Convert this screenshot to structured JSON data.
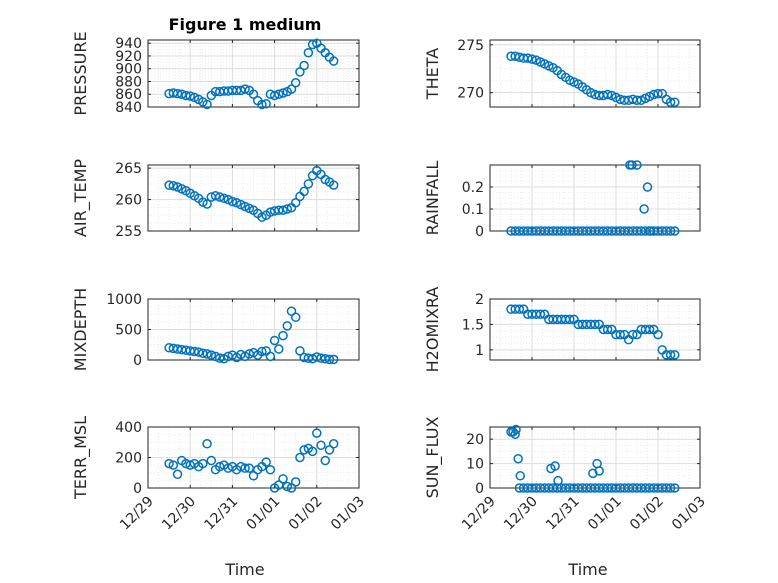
{
  "figure": {
    "title": "Figure 1 medium",
    "xlabel": "Time"
  },
  "colors": {
    "marker": "#0072BD",
    "axis": "#262626",
    "grid": "#dddddd",
    "minor_grid": "#ececec"
  },
  "chart_data": [
    {
      "type": "scatter",
      "ylabel": "PRESSURE",
      "xlim": [
        0,
        5
      ],
      "xticks": [
        0,
        1,
        2,
        3,
        4,
        5
      ],
      "xticklabels": [
        "12/29",
        "12/30",
        "12/31",
        "01/01",
        "01/02",
        "01/03"
      ],
      "ylim": [
        840,
        945
      ],
      "yticks": [
        840,
        860,
        880,
        900,
        920,
        940
      ],
      "yticklabels": [
        "840",
        "860",
        "880",
        "900",
        "920",
        "940"
      ],
      "series": [
        {
          "name": "PRESSURE",
          "x": [
            0.5,
            0.6,
            0.7,
            0.8,
            0.9,
            1.0,
            1.1,
            1.2,
            1.3,
            1.4,
            1.5,
            1.6,
            1.7,
            1.8,
            1.9,
            2.0,
            2.1,
            2.2,
            2.3,
            2.4,
            2.5,
            2.6,
            2.7,
            2.8,
            2.9,
            3.0,
            3.1,
            3.2,
            3.3,
            3.4,
            3.5,
            3.6,
            3.7,
            3.8,
            3.9,
            4.0,
            4.1,
            4.2,
            4.3,
            4.4
          ],
          "y": [
            861,
            862,
            861,
            860,
            858,
            857,
            855,
            852,
            848,
            844,
            858,
            864,
            864,
            865,
            865,
            866,
            866,
            866,
            868,
            866,
            860,
            850,
            844,
            845,
            860,
            858,
            860,
            862,
            864,
            868,
            878,
            895,
            905,
            925,
            938,
            940,
            932,
            925,
            918,
            912
          ]
        }
      ]
    },
    {
      "type": "scatter",
      "ylabel": "THETA",
      "xlim": [
        0,
        5
      ],
      "xticks": [
        0,
        1,
        2,
        3,
        4,
        5
      ],
      "xticklabels": [
        "12/29",
        "12/30",
        "12/31",
        "01/01",
        "01/02",
        "01/03"
      ],
      "ylim": [
        268.5,
        275.5
      ],
      "yticks": [
        270,
        275
      ],
      "yticklabels": [
        "270",
        "275"
      ],
      "series": [
        {
          "name": "THETA",
          "x": [
            0.5,
            0.6,
            0.7,
            0.8,
            0.9,
            1.0,
            1.1,
            1.2,
            1.3,
            1.4,
            1.5,
            1.6,
            1.7,
            1.8,
            1.9,
            2.0,
            2.1,
            2.2,
            2.3,
            2.4,
            2.5,
            2.6,
            2.7,
            2.8,
            2.9,
            3.0,
            3.1,
            3.2,
            3.3,
            3.4,
            3.5,
            3.6,
            3.7,
            3.8,
            3.9,
            4.0,
            4.1,
            4.2,
            4.3,
            4.4
          ],
          "y": [
            273.8,
            273.8,
            273.7,
            273.6,
            273.6,
            273.5,
            273.4,
            273.2,
            273.0,
            272.8,
            272.6,
            272.3,
            271.9,
            271.6,
            271.3,
            271.1,
            270.9,
            270.6,
            270.3,
            270.0,
            269.8,
            269.7,
            269.7,
            269.8,
            269.7,
            269.5,
            269.3,
            269.2,
            269.2,
            269.3,
            269.2,
            269.2,
            269.4,
            269.6,
            269.8,
            269.9,
            269.9,
            269.3,
            269.0,
            269.0
          ]
        }
      ]
    },
    {
      "type": "scatter",
      "ylabel": "AIR_TEMP",
      "xlim": [
        0,
        5
      ],
      "xticks": [
        0,
        1,
        2,
        3,
        4,
        5
      ],
      "xticklabels": [
        "12/29",
        "12/30",
        "12/31",
        "01/01",
        "01/02",
        "01/03"
      ],
      "ylim": [
        255,
        265.5
      ],
      "yticks": [
        255,
        260,
        265
      ],
      "yticklabels": [
        "255",
        "260",
        "265"
      ],
      "series": [
        {
          "name": "AIR_TEMP",
          "x": [
            0.5,
            0.6,
            0.7,
            0.8,
            0.9,
            1.0,
            1.1,
            1.2,
            1.3,
            1.4,
            1.5,
            1.6,
            1.7,
            1.8,
            1.9,
            2.0,
            2.1,
            2.2,
            2.3,
            2.4,
            2.5,
            2.6,
            2.7,
            2.8,
            2.9,
            3.0,
            3.1,
            3.2,
            3.3,
            3.4,
            3.5,
            3.6,
            3.7,
            3.8,
            3.9,
            4.0,
            4.1,
            4.2,
            4.3,
            4.4
          ],
          "y": [
            262.3,
            262.2,
            262.0,
            261.7,
            261.4,
            261.0,
            260.6,
            260.2,
            259.6,
            259.3,
            260.4,
            260.6,
            260.4,
            260.2,
            260.0,
            259.7,
            259.5,
            259.2,
            258.9,
            258.6,
            258.3,
            257.8,
            257.2,
            257.5,
            258.0,
            258.2,
            258.3,
            258.3,
            258.5,
            258.7,
            259.5,
            260.5,
            261.3,
            262.5,
            263.8,
            264.6,
            264.0,
            263.2,
            262.8,
            262.3
          ]
        }
      ]
    },
    {
      "type": "scatter",
      "ylabel": "RAINFALL",
      "xlim": [
        0,
        5
      ],
      "xticks": [
        0,
        1,
        2,
        3,
        4,
        5
      ],
      "xticklabels": [
        "12/29",
        "12/30",
        "12/31",
        "01/01",
        "01/02",
        "01/03"
      ],
      "ylim": [
        0,
        0.3
      ],
      "yticks": [
        0,
        0.1,
        0.2
      ],
      "yticklabels": [
        "0",
        "0.1",
        "0.2"
      ],
      "series": [
        {
          "name": "RAINFALL",
          "x": [
            0.5,
            0.6,
            0.7,
            0.8,
            0.9,
            1.0,
            1.1,
            1.2,
            1.3,
            1.4,
            1.5,
            1.6,
            1.7,
            1.8,
            1.9,
            2.0,
            2.1,
            2.2,
            2.3,
            2.4,
            2.5,
            2.6,
            2.7,
            2.8,
            2.9,
            3.0,
            3.1,
            3.2,
            3.3,
            3.4,
            3.5,
            3.6,
            3.7,
            3.8,
            3.9,
            4.0,
            4.1,
            4.2,
            4.3,
            4.4,
            3.33,
            3.38,
            3.5,
            3.67,
            3.75,
            3.82
          ],
          "y": [
            0,
            0,
            0,
            0,
            0,
            0,
            0,
            0,
            0,
            0,
            0,
            0,
            0,
            0,
            0,
            0,
            0,
            0,
            0,
            0,
            0,
            0,
            0,
            0,
            0,
            0,
            0,
            0,
            0,
            0,
            0,
            0,
            0,
            0,
            0,
            0,
            0,
            0,
            0,
            0,
            0.3,
            0.3,
            0.3,
            0.1,
            0.2,
            0
          ]
        }
      ]
    },
    {
      "type": "scatter",
      "ylabel": "MIXDEPTH",
      "xlim": [
        0,
        5
      ],
      "xticks": [
        0,
        1,
        2,
        3,
        4,
        5
      ],
      "xticklabels": [
        "12/29",
        "12/30",
        "12/31",
        "01/01",
        "01/02",
        "01/03"
      ],
      "ylim": [
        0,
        1000
      ],
      "yticks": [
        0,
        500,
        1000
      ],
      "yticklabels": [
        "0",
        "500",
        "1000"
      ],
      "series": [
        {
          "name": "MIXDEPTH",
          "x": [
            0.5,
            0.6,
            0.7,
            0.8,
            0.9,
            1.0,
            1.1,
            1.2,
            1.3,
            1.4,
            1.5,
            1.6,
            1.7,
            1.8,
            1.9,
            2.0,
            2.1,
            2.2,
            2.3,
            2.4,
            2.5,
            2.6,
            2.7,
            2.8,
            2.9,
            3.0,
            3.1,
            3.2,
            3.3,
            3.4,
            3.5,
            3.6,
            3.7,
            3.8,
            3.9,
            4.0,
            4.1,
            4.2,
            4.3,
            4.4
          ],
          "y": [
            200,
            190,
            180,
            170,
            160,
            150,
            140,
            130,
            110,
            100,
            80,
            60,
            30,
            20,
            60,
            80,
            40,
            90,
            60,
            100,
            120,
            80,
            140,
            150,
            60,
            320,
            180,
            400,
            560,
            800,
            700,
            150,
            40,
            30,
            20,
            50,
            30,
            20,
            10,
            10
          ]
        }
      ]
    },
    {
      "type": "scatter",
      "ylabel": "H2OMIXRA",
      "xlim": [
        0,
        5
      ],
      "xticks": [
        0,
        1,
        2,
        3,
        4,
        5
      ],
      "xticklabels": [
        "12/29",
        "12/30",
        "12/31",
        "01/01",
        "01/02",
        "01/03"
      ],
      "ylim": [
        0.8,
        2.0
      ],
      "yticks": [
        1,
        1.5,
        2
      ],
      "yticklabels": [
        "1",
        "1.5",
        "2"
      ],
      "series": [
        {
          "name": "H2OMIXRA",
          "x": [
            0.5,
            0.6,
            0.7,
            0.8,
            0.9,
            1.0,
            1.1,
            1.2,
            1.3,
            1.4,
            1.5,
            1.6,
            1.7,
            1.8,
            1.9,
            2.0,
            2.1,
            2.2,
            2.3,
            2.4,
            2.5,
            2.6,
            2.7,
            2.8,
            2.9,
            3.0,
            3.1,
            3.2,
            3.3,
            3.4,
            3.5,
            3.6,
            3.7,
            3.8,
            3.9,
            4.0,
            4.1,
            4.2,
            4.3,
            4.4
          ],
          "y": [
            1.8,
            1.8,
            1.8,
            1.8,
            1.7,
            1.7,
            1.7,
            1.7,
            1.7,
            1.6,
            1.6,
            1.6,
            1.6,
            1.6,
            1.6,
            1.6,
            1.5,
            1.5,
            1.5,
            1.5,
            1.5,
            1.5,
            1.4,
            1.4,
            1.4,
            1.3,
            1.3,
            1.3,
            1.2,
            1.3,
            1.3,
            1.4,
            1.4,
            1.4,
            1.4,
            1.3,
            1.0,
            0.9,
            0.9,
            0.9
          ]
        }
      ]
    },
    {
      "type": "scatter",
      "ylabel": "TERR_MSL",
      "xlim": [
        0,
        5
      ],
      "xticks": [
        0,
        1,
        2,
        3,
        4,
        5
      ],
      "xticklabels": [
        "12/29",
        "12/30",
        "12/31",
        "01/01",
        "01/02",
        "01/03"
      ],
      "ylim": [
        0,
        400
      ],
      "yticks": [
        0,
        200,
        400
      ],
      "yticklabels": [
        "0",
        "200",
        "400"
      ],
      "series": [
        {
          "name": "TERR_MSL",
          "x": [
            0.5,
            0.6,
            0.7,
            0.8,
            0.9,
            1.0,
            1.1,
            1.2,
            1.3,
            1.4,
            1.5,
            1.6,
            1.7,
            1.8,
            1.9,
            2.0,
            2.1,
            2.2,
            2.3,
            2.4,
            2.5,
            2.6,
            2.7,
            2.8,
            2.9,
            3.0,
            3.1,
            3.2,
            3.3,
            3.4,
            3.5,
            3.6,
            3.7,
            3.8,
            3.9,
            4.0,
            4.1,
            4.2,
            4.3,
            4.4
          ],
          "y": [
            160,
            150,
            90,
            180,
            160,
            150,
            160,
            140,
            160,
            290,
            180,
            120,
            140,
            150,
            130,
            140,
            120,
            140,
            130,
            130,
            80,
            120,
            140,
            170,
            120,
            0,
            20,
            60,
            10,
            0,
            40,
            200,
            250,
            260,
            240,
            360,
            280,
            180,
            250,
            290
          ]
        }
      ]
    },
    {
      "type": "scatter",
      "ylabel": "SUN_FLUX",
      "xlim": [
        0,
        5
      ],
      "xticks": [
        0,
        1,
        2,
        3,
        4,
        5
      ],
      "xticklabels": [
        "12/29",
        "12/30",
        "12/31",
        "01/01",
        "01/02",
        "01/03"
      ],
      "ylim": [
        0,
        25
      ],
      "yticks": [
        0,
        10,
        20
      ],
      "yticklabels": [
        "0",
        "10",
        "20"
      ],
      "series": [
        {
          "name": "SUN_FLUX",
          "x": [
            0.5,
            0.6,
            0.7,
            0.8,
            0.9,
            1.0,
            1.1,
            1.2,
            1.3,
            1.4,
            1.5,
            1.6,
            1.7,
            1.8,
            1.9,
            2.0,
            2.1,
            2.2,
            2.3,
            2.4,
            2.5,
            2.6,
            2.7,
            2.8,
            2.9,
            3.0,
            3.1,
            3.2,
            3.3,
            3.4,
            3.5,
            3.6,
            3.7,
            3.8,
            3.9,
            4.0,
            4.1,
            4.2,
            4.3,
            4.4,
            0.55,
            0.62,
            0.67,
            0.72,
            1.45,
            1.55,
            1.62,
            2.45,
            2.55,
            2.6
          ],
          "y": [
            23,
            22,
            0,
            0,
            0,
            0,
            0,
            0,
            0,
            0,
            0,
            0,
            0,
            0,
            0,
            0,
            0,
            0,
            0,
            0,
            0,
            0,
            0,
            0,
            0,
            0,
            0,
            0,
            0,
            0,
            0,
            0,
            0,
            0,
            0,
            0,
            0,
            0,
            0,
            0,
            23,
            24,
            12,
            5,
            8,
            9,
            3,
            6,
            10,
            7
          ]
        }
      ]
    }
  ]
}
